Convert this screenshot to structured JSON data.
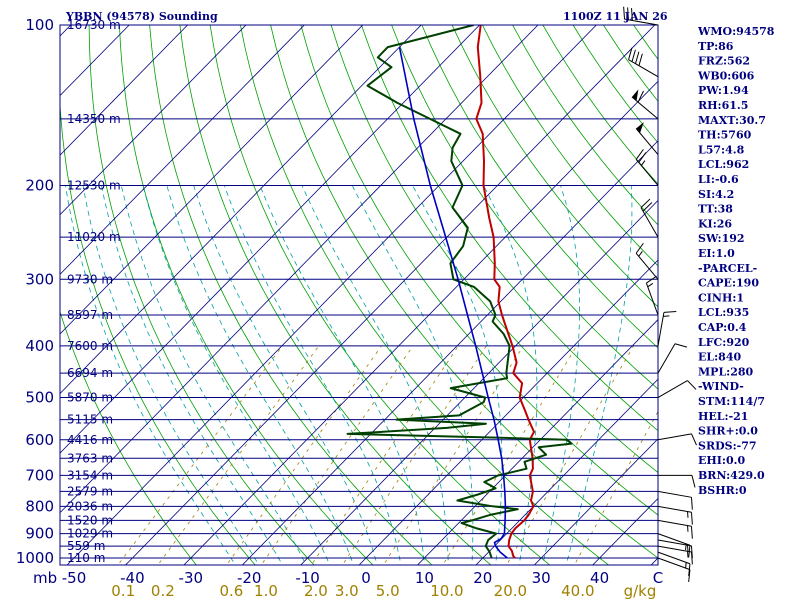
{
  "header": {
    "station": "YBBN (94578) Sounding",
    "time": "1100Z 11 JAN 26"
  },
  "colors": {
    "frame": "#000080",
    "isobar": "#000080",
    "isotherm": "#000080",
    "dry_adiabat": "#00a000",
    "moist_adiabat": "#00a0a0",
    "mixing_ratio": "#a08000",
    "temperature": "#c00000",
    "dewpoint": "#004000",
    "parcel": "#0000c0",
    "wind_barb": "#000000"
  },
  "chart_data": {
    "type": "skew-t",
    "y_axis": {
      "label": "mb",
      "scale": "log",
      "range": [
        1000,
        100
      ],
      "ticks": [
        100,
        200,
        300,
        400,
        500,
        600,
        700,
        800,
        900,
        1000
      ]
    },
    "x_axis": {
      "unit": "C",
      "ticks": [
        -50,
        -40,
        -30,
        -20,
        -10,
        0,
        10,
        20,
        30,
        40
      ]
    },
    "mixing_ratio_axis": {
      "unit": "g/kg",
      "ticks": [
        "0.1",
        "0.2",
        "0.6",
        "1.0",
        "2.0",
        "3.0",
        "5.0",
        "10.0",
        "20.0",
        "40.0"
      ]
    },
    "height_labels": [
      {
        "p": 100,
        "h": "16730 m"
      },
      {
        "p": 150,
        "h": "14350 m"
      },
      {
        "p": 200,
        "h": "12530 m"
      },
      {
        "p": 250,
        "h": "11020 m"
      },
      {
        "p": 300,
        "h": "9730 m"
      },
      {
        "p": 350,
        "h": "8597 m"
      },
      {
        "p": 400,
        "h": "7600 m"
      },
      {
        "p": 450,
        "h": "6694 m"
      },
      {
        "p": 500,
        "h": "5870 m"
      },
      {
        "p": 550,
        "h": "5115 m"
      },
      {
        "p": 600,
        "h": "4416 m"
      },
      {
        "p": 650,
        "h": "3763 m"
      },
      {
        "p": 700,
        "h": "3154 m"
      },
      {
        "p": 750,
        "h": "2579 m"
      },
      {
        "p": 800,
        "h": "2036 m"
      },
      {
        "p": 850,
        "h": "1520 m"
      },
      {
        "p": 900,
        "h": "1029 m"
      },
      {
        "p": 950,
        "h": "559 m"
      },
      {
        "p": 1000,
        "h": "110 m"
      }
    ],
    "series": [
      {
        "key": "temperature",
        "points": [
          [
            1000,
            25.5
          ],
          [
            990,
            24.8
          ],
          [
            970,
            23.8
          ],
          [
            950,
            22.4
          ],
          [
            925,
            21.5
          ],
          [
            900,
            20.8
          ],
          [
            880,
            20.6
          ],
          [
            850,
            20.8
          ],
          [
            830,
            20.6
          ],
          [
            800,
            20.0
          ],
          [
            780,
            18.6
          ],
          [
            750,
            17.4
          ],
          [
            700,
            14.2
          ],
          [
            680,
            13.6
          ],
          [
            650,
            11.8
          ],
          [
            600,
            8.2
          ],
          [
            580,
            7.6
          ],
          [
            550,
            4.6
          ],
          [
            530,
            2.6
          ],
          [
            500,
            -0.6
          ],
          [
            470,
            -2.6
          ],
          [
            450,
            -5.8
          ],
          [
            430,
            -7.0
          ],
          [
            400,
            -10.5
          ],
          [
            380,
            -13.2
          ],
          [
            350,
            -17.5
          ],
          [
            330,
            -20.4
          ],
          [
            310,
            -22.6
          ],
          [
            300,
            -24.8
          ],
          [
            280,
            -27.4
          ],
          [
            250,
            -32.0
          ],
          [
            230,
            -36.0
          ],
          [
            200,
            -42.4
          ],
          [
            180,
            -46.4
          ],
          [
            160,
            -51.2
          ],
          [
            150,
            -54.8
          ],
          [
            140,
            -56.6
          ],
          [
            125,
            -61.2
          ],
          [
            110,
            -66.6
          ],
          [
            100,
            -69.8
          ]
        ]
      },
      {
        "key": "dewpoint",
        "points": [
          [
            1000,
            21.5
          ],
          [
            975,
            20.2
          ],
          [
            950,
            18.5
          ],
          [
            925,
            17.9
          ],
          [
            900,
            18.2
          ],
          [
            880,
            14.0
          ],
          [
            860,
            10.5
          ],
          [
            850,
            11.8
          ],
          [
            830,
            14.0
          ],
          [
            810,
            17.8
          ],
          [
            800,
            13.0
          ],
          [
            780,
            6.0
          ],
          [
            760,
            8.5
          ],
          [
            740,
            10.5
          ],
          [
            720,
            7.5
          ],
          [
            700,
            8.8
          ],
          [
            680,
            12.5
          ],
          [
            660,
            11.0
          ],
          [
            640,
            13.5
          ],
          [
            620,
            11.0
          ],
          [
            610,
            16.0
          ],
          [
            600,
            14.5
          ],
          [
            595,
            3.0
          ],
          [
            585,
            -24.0
          ],
          [
            570,
            -8.0
          ],
          [
            560,
            -2.0
          ],
          [
            550,
            -18.0
          ],
          [
            540,
            -8.0
          ],
          [
            510,
            -6.0
          ],
          [
            500,
            -6.5
          ],
          [
            480,
            -14.0
          ],
          [
            460,
            -6.0
          ],
          [
            450,
            -7.0
          ],
          [
            400,
            -11.0
          ],
          [
            380,
            -14.0
          ],
          [
            360,
            -18.0
          ],
          [
            350,
            -18.6
          ],
          [
            330,
            -21.8
          ],
          [
            310,
            -27.0
          ],
          [
            300,
            -31.8
          ],
          [
            280,
            -35.0
          ],
          [
            260,
            -35.7
          ],
          [
            240,
            -38.0
          ],
          [
            220,
            -44.0
          ],
          [
            200,
            -46.0
          ],
          [
            180,
            -52.0
          ],
          [
            170,
            -54.0
          ],
          [
            160,
            -55.0
          ],
          [
            140,
            -71.0
          ],
          [
            130,
            -79.0
          ],
          [
            120,
            -78.0
          ],
          [
            115,
            -82.0
          ],
          [
            110,
            -82.0
          ],
          [
            100,
            -71.0
          ]
        ]
      },
      {
        "key": "parcel",
        "points": [
          [
            1000,
            24.2
          ],
          [
            975,
            22.0
          ],
          [
            950,
            20.2
          ],
          [
            935,
            19.4
          ],
          [
            920,
            19.9
          ],
          [
            900,
            19.6
          ],
          [
            850,
            17.5
          ],
          [
            800,
            15.2
          ],
          [
            750,
            12.6
          ],
          [
            700,
            9.7
          ],
          [
            650,
            6.5
          ],
          [
            600,
            2.8
          ],
          [
            550,
            -1.3
          ],
          [
            500,
            -6.0
          ],
          [
            450,
            -11.1
          ],
          [
            400,
            -16.8
          ],
          [
            350,
            -23.4
          ],
          [
            300,
            -31.0
          ],
          [
            250,
            -40.2
          ],
          [
            200,
            -51.5
          ],
          [
            150,
            -65.5
          ],
          [
            110,
            -80.0
          ]
        ]
      }
    ],
    "wind_barbs": [
      {
        "p": 1000,
        "dir": 110,
        "spd": 10
      },
      {
        "p": 975,
        "dir": 110,
        "spd": 15
      },
      {
        "p": 950,
        "dir": 100,
        "spd": 15
      },
      {
        "p": 925,
        "dir": 100,
        "spd": 15
      },
      {
        "p": 900,
        "dir": 110,
        "spd": 15
      },
      {
        "p": 850,
        "dir": 100,
        "spd": 15
      },
      {
        "p": 800,
        "dir": 100,
        "spd": 15
      },
      {
        "p": 750,
        "dir": 100,
        "spd": 10
      },
      {
        "p": 700,
        "dir": 90,
        "spd": 10
      },
      {
        "p": 600,
        "dir": 80,
        "spd": 10
      },
      {
        "p": 500,
        "dir": 60,
        "spd": 10
      },
      {
        "p": 450,
        "dir": 30,
        "spd": 10
      },
      {
        "p": 400,
        "dir": 10,
        "spd": 15
      },
      {
        "p": 350,
        "dir": 340,
        "spd": 15
      },
      {
        "p": 300,
        "dir": 320,
        "spd": 15
      },
      {
        "p": 250,
        "dir": 330,
        "spd": 20
      },
      {
        "p": 200,
        "dir": 320,
        "spd": 25
      },
      {
        "p": 175,
        "dir": 320,
        "spd": 50
      },
      {
        "p": 150,
        "dir": 310,
        "spd": 60
      },
      {
        "p": 125,
        "dir": 300,
        "spd": 40
      },
      {
        "p": 100,
        "dir": 280,
        "spd": 30
      }
    ]
  },
  "indices": [
    "WMO:94578",
    "TP:86",
    "FRZ:562",
    "WB0:606",
    "PW:1.94",
    "RH:61.5",
    "MAXT:30.7",
    "TH:5760",
    "L57:4.8",
    "LCL:962",
    "LI:-0.6",
    "SI:4.2",
    "TT:38",
    "KI:26",
    "SW:192",
    "EI:1.0",
    "-PARCEL-",
    "CAPE:190",
    "CINH:1",
    "LCL:935",
    "CAP:0.4",
    "LFC:920",
    "EL:840",
    "MPL:280",
    "-WIND-",
    "STM:114/7",
    "HEL:-21",
    "SHR+:0.0",
    "SRDS:-77",
    "EHI:0.0",
    "BRN:429.0",
    "BSHR:0"
  ]
}
